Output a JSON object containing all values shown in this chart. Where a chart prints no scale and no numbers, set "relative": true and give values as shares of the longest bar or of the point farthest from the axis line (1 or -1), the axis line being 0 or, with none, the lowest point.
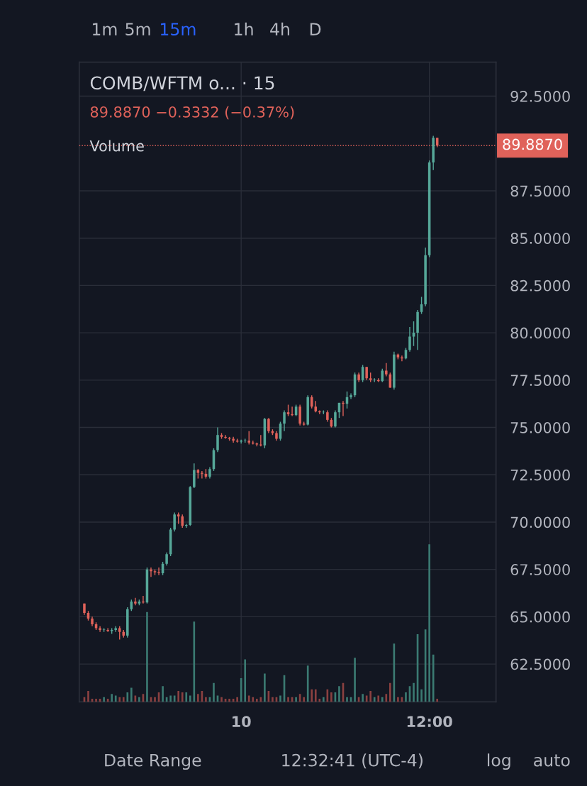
{
  "chart_data": [
    {
      "type": "candlestick",
      "title": "COMB/WFTM o... · 15",
      "subtitle": "89.8870 −0.3332 (−0.37%)",
      "categories": [
        null,
        null,
        null,
        null,
        null,
        null,
        null,
        null,
        null,
        null,
        null,
        null,
        null,
        null,
        null,
        null,
        null,
        null,
        null,
        null,
        null,
        null,
        null,
        null,
        null,
        null,
        null,
        null,
        null,
        null,
        null,
        null,
        null,
        null,
        null,
        null,
        null,
        null,
        null,
        null,
        "10",
        null,
        null,
        null,
        null,
        null,
        null,
        null,
        null,
        null,
        null,
        null,
        null,
        null,
        null,
        null,
        null,
        null,
        null,
        null,
        null,
        null,
        null,
        null,
        null,
        null,
        null,
        null,
        null,
        null,
        null,
        null,
        null,
        null,
        null,
        null,
        null,
        null,
        null,
        null,
        null,
        null,
        null,
        null,
        null,
        null,
        null,
        null,
        "12:00",
        null,
        null
      ],
      "ohlc": [
        [
          65.7,
          65.7,
          65.1,
          65.2
        ],
        [
          65.2,
          65.3,
          64.8,
          64.9
        ],
        [
          64.9,
          65.0,
          64.5,
          64.6
        ],
        [
          64.6,
          64.7,
          64.3,
          64.4
        ],
        [
          64.4,
          64.5,
          64.2,
          64.3
        ],
        [
          64.3,
          64.4,
          64.2,
          64.3
        ],
        [
          64.3,
          64.4,
          64.2,
          64.25
        ],
        [
          64.25,
          64.4,
          64.1,
          64.3
        ],
        [
          64.3,
          64.5,
          64.2,
          64.4
        ],
        [
          64.4,
          64.5,
          63.8,
          64.2
        ],
        [
          64.2,
          64.3,
          63.9,
          64.0
        ],
        [
          64.0,
          65.5,
          63.9,
          65.4
        ],
        [
          65.4,
          65.9,
          65.3,
          65.8
        ],
        [
          65.8,
          66.0,
          65.6,
          65.7
        ],
        [
          65.7,
          65.9,
          65.6,
          65.8
        ],
        [
          65.8,
          66.1,
          65.7,
          65.75
        ],
        [
          65.75,
          67.6,
          65.7,
          67.5
        ],
        [
          67.5,
          67.6,
          67.1,
          67.4
        ],
        [
          67.4,
          67.5,
          67.2,
          67.35
        ],
        [
          67.35,
          67.6,
          67.2,
          67.3
        ],
        [
          67.3,
          67.9,
          67.2,
          67.8
        ],
        [
          67.8,
          68.4,
          67.7,
          68.3
        ],
        [
          68.3,
          69.7,
          68.2,
          69.6
        ],
        [
          69.6,
          70.5,
          69.5,
          70.4
        ],
        [
          70.4,
          70.5,
          69.9,
          70.3
        ],
        [
          70.3,
          70.4,
          69.7,
          69.8
        ],
        [
          69.8,
          69.9,
          69.7,
          69.85
        ],
        [
          69.85,
          71.9,
          69.8,
          71.85
        ],
        [
          71.85,
          73.1,
          71.8,
          72.75
        ],
        [
          72.75,
          72.8,
          72.3,
          72.6
        ],
        [
          72.6,
          72.7,
          72.3,
          72.55
        ],
        [
          72.55,
          72.8,
          72.3,
          72.4
        ],
        [
          72.4,
          72.9,
          72.3,
          72.8
        ],
        [
          72.8,
          73.9,
          72.7,
          73.8
        ],
        [
          73.8,
          75.0,
          73.7,
          74.6
        ],
        [
          74.6,
          74.7,
          74.4,
          74.5
        ],
        [
          74.5,
          74.6,
          74.4,
          74.45
        ],
        [
          74.45,
          74.5,
          74.3,
          74.4
        ],
        [
          74.4,
          74.5,
          74.2,
          74.3
        ],
        [
          74.3,
          74.4,
          74.2,
          74.25
        ],
        [
          74.25,
          74.35,
          74.15,
          74.3
        ],
        [
          74.3,
          74.4,
          74.2,
          74.3
        ],
        [
          74.3,
          74.8,
          74.1,
          74.2
        ],
        [
          74.2,
          74.3,
          74.1,
          74.15
        ],
        [
          74.15,
          74.2,
          74.0,
          74.1
        ],
        [
          74.1,
          74.6,
          74.0,
          74.05
        ],
        [
          74.05,
          75.5,
          73.9,
          75.45
        ],
        [
          75.45,
          75.5,
          74.7,
          74.8
        ],
        [
          74.8,
          74.9,
          74.6,
          74.7
        ],
        [
          74.7,
          74.8,
          74.3,
          74.4
        ],
        [
          74.4,
          75.3,
          74.3,
          75.2
        ],
        [
          75.2,
          75.9,
          74.8,
          75.8
        ],
        [
          75.8,
          76.2,
          75.6,
          75.7
        ],
        [
          75.7,
          76.1,
          75.6,
          75.65
        ],
        [
          75.65,
          76.2,
          75.6,
          76.1
        ],
        [
          76.1,
          76.2,
          75.1,
          75.2
        ],
        [
          75.2,
          75.3,
          75.1,
          75.15
        ],
        [
          75.15,
          76.7,
          75.1,
          76.6
        ],
        [
          76.6,
          76.7,
          76.0,
          76.1
        ],
        [
          76.1,
          76.4,
          75.8,
          75.85
        ],
        [
          75.85,
          75.9,
          75.7,
          75.8
        ],
        [
          75.8,
          75.9,
          75.7,
          75.8
        ],
        [
          75.8,
          75.9,
          75.3,
          75.4
        ],
        [
          75.4,
          75.5,
          75.0,
          75.05
        ],
        [
          75.05,
          75.9,
          75.0,
          75.8
        ],
        [
          75.8,
          76.3,
          75.5,
          76.3
        ],
        [
          76.3,
          76.4,
          75.6,
          76.25
        ],
        [
          76.25,
          76.9,
          76.0,
          76.6
        ],
        [
          76.6,
          76.8,
          76.5,
          76.7
        ],
        [
          76.7,
          77.9,
          76.6,
          77.8
        ],
        [
          77.8,
          77.9,
          77.4,
          77.5
        ],
        [
          77.5,
          78.3,
          77.4,
          78.2
        ],
        [
          78.2,
          78.2,
          77.5,
          77.6
        ],
        [
          77.6,
          77.9,
          77.4,
          77.5
        ],
        [
          77.5,
          77.6,
          77.4,
          77.5
        ],
        [
          77.5,
          77.6,
          77.4,
          77.45
        ],
        [
          77.45,
          78.1,
          77.4,
          78.0
        ],
        [
          78.0,
          78.4,
          77.7,
          77.8
        ],
        [
          77.8,
          77.9,
          77.1,
          77.1
        ],
        [
          77.1,
          79.0,
          77.0,
          78.85
        ],
        [
          78.85,
          78.9,
          78.6,
          78.7
        ],
        [
          78.7,
          78.8,
          78.5,
          78.65
        ],
        [
          78.65,
          79.2,
          78.6,
          79.1
        ],
        [
          79.1,
          80.3,
          79.0,
          79.8
        ],
        [
          79.8,
          80.6,
          79.3,
          80.0
        ],
        [
          80.0,
          81.2,
          79.1,
          81.1
        ],
        [
          81.1,
          81.9,
          81.0,
          81.5
        ],
        [
          81.5,
          84.5,
          81.4,
          84.1
        ],
        [
          84.1,
          89.1,
          84.0,
          89.0
        ],
        [
          89.0,
          90.4,
          88.6,
          90.3
        ],
        [
          90.3,
          90.3,
          89.8,
          89.887
        ]
      ],
      "colors": [
        "#e0625a",
        "#e0625a",
        "#e0625a",
        "#e0625a",
        "#e0625a",
        "#56a899",
        "#e0625a",
        "#56a899",
        "#56a899",
        "#e0625a",
        "#e0625a",
        "#56a899",
        "#56a899",
        "#e0625a",
        "#56a899",
        "#e0625a",
        "#56a899",
        "#e0625a",
        "#e0625a",
        "#e0625a",
        "#56a899",
        "#56a899",
        "#56a899",
        "#56a899",
        "#e0625a",
        "#e0625a",
        "#56a899",
        "#56a899",
        "#56a899",
        "#e0625a",
        "#e0625a",
        "#e0625a",
        "#56a899",
        "#56a899",
        "#56a899",
        "#e0625a",
        "#e0625a",
        "#e0625a",
        "#e0625a",
        "#e0625a",
        "#56a899",
        "#56a899",
        "#e0625a",
        "#e0625a",
        "#e0625a",
        "#e0625a",
        "#56a899",
        "#e0625a",
        "#e0625a",
        "#e0625a",
        "#56a899",
        "#56a899",
        "#e0625a",
        "#e0625a",
        "#56a899",
        "#e0625a",
        "#e0625a",
        "#56a899",
        "#e0625a",
        "#e0625a",
        "#e0625a",
        "#56a899",
        "#e0625a",
        "#e0625a",
        "#56a899",
        "#56a899",
        "#e0625a",
        "#56a899",
        "#56a899",
        "#56a899",
        "#e0625a",
        "#56a899",
        "#e0625a",
        "#e0625a",
        "#56a899",
        "#e0625a",
        "#56a899",
        "#e0625a",
        "#e0625a",
        "#56a899",
        "#e0625a",
        "#e0625a",
        "#56a899",
        "#56a899",
        "#56a899",
        "#56a899",
        "#56a899",
        "#56a899",
        "#56a899",
        "#56a899",
        "#e0625a"
      ],
      "ylim": [
        60.5,
        94.3
      ],
      "yticks": [
        {
          "value": 62.5,
          "label": "62.5000"
        },
        {
          "value": 65,
          "label": "65.0000"
        },
        {
          "value": 67.5,
          "label": "67.5000"
        },
        {
          "value": 70,
          "label": "70.0000"
        },
        {
          "value": 72.5,
          "label": "72.5000"
        },
        {
          "value": 75,
          "label": "75.0000"
        },
        {
          "value": 77.5,
          "label": "77.5000"
        },
        {
          "value": 80,
          "label": "80.0000"
        },
        {
          "value": 82.5,
          "label": "82.5000"
        },
        {
          "value": 85,
          "label": "85.0000"
        },
        {
          "value": 87.5,
          "label": "87.5000"
        },
        {
          "value": 92.5,
          "label": "92.5000"
        }
      ],
      "ref_lines": [
        {
          "axis": "y",
          "value": 89.887,
          "label": "89.8870",
          "color": "#e0625a",
          "line_style": "dotted"
        }
      ],
      "grid": true,
      "annotations": [
        "1m",
        "5m",
        "15m",
        "1h",
        "4h",
        "D",
        "Date Range",
        "12:32:41 (UTC-4)",
        "log",
        "auto"
      ]
    },
    {
      "type": "bar",
      "title": "Volume",
      "relative": true,
      "categories": [
        null,
        null,
        null,
        null,
        null,
        null,
        null,
        null,
        null,
        null,
        null,
        null,
        null,
        null,
        null,
        null,
        null,
        null,
        null,
        null,
        null,
        null,
        null,
        null,
        null,
        null,
        null,
        null,
        null,
        null,
        null,
        null,
        null,
        null,
        null,
        null,
        null,
        null,
        null,
        null,
        null,
        null,
        null,
        null,
        null,
        null,
        null,
        null,
        null,
        null,
        null,
        null,
        null,
        null,
        null,
        null,
        null,
        null,
        null,
        null,
        null,
        null,
        null,
        null,
        null,
        null,
        null,
        null,
        null,
        null,
        null,
        null,
        null,
        null,
        null,
        null,
        null,
        null,
        null,
        null,
        null,
        null,
        null,
        null,
        null,
        null,
        null,
        null,
        null,
        null,
        null
      ],
      "values": [
        0.03,
        0.07,
        0.02,
        0.02,
        0.02,
        0.03,
        0.02,
        0.05,
        0.04,
        0.03,
        0.03,
        0.06,
        0.09,
        0.04,
        0.03,
        0.05,
        0.57,
        0.03,
        0.03,
        0.06,
        0.1,
        0.03,
        0.04,
        0.04,
        0.07,
        0.06,
        0.06,
        0.04,
        0.51,
        0.05,
        0.07,
        0.03,
        0.03,
        0.12,
        0.04,
        0.03,
        0.02,
        0.02,
        0.02,
        0.03,
        0.15,
        0.27,
        0.04,
        0.03,
        0.02,
        0.03,
        0.18,
        0.07,
        0.03,
        0.03,
        0.04,
        0.17,
        0.03,
        0.03,
        0.03,
        0.05,
        0.03,
        0.23,
        0.08,
        0.08,
        0.02,
        0.03,
        0.08,
        0.06,
        0.06,
        0.1,
        0.12,
        0.03,
        0.03,
        0.28,
        0.03,
        0.05,
        0.04,
        0.07,
        0.03,
        0.04,
        0.03,
        0.05,
        0.12,
        0.37,
        0.03,
        0.03,
        0.06,
        0.1,
        0.12,
        0.43,
        0.08,
        0.46,
        1.0,
        0.3,
        0.02
      ],
      "colors": [
        "#8a4040",
        "#8a4040",
        "#8a4040",
        "#8a4040",
        "#8a4040",
        "#3b7a72",
        "#8a4040",
        "#3b7a72",
        "#3b7a72",
        "#8a4040",
        "#8a4040",
        "#3b7a72",
        "#3b7a72",
        "#8a4040",
        "#3b7a72",
        "#8a4040",
        "#3b7a72",
        "#8a4040",
        "#8a4040",
        "#8a4040",
        "#3b7a72",
        "#3b7a72",
        "#3b7a72",
        "#3b7a72",
        "#8a4040",
        "#8a4040",
        "#3b7a72",
        "#3b7a72",
        "#3b7a72",
        "#8a4040",
        "#8a4040",
        "#8a4040",
        "#3b7a72",
        "#3b7a72",
        "#3b7a72",
        "#8a4040",
        "#8a4040",
        "#8a4040",
        "#8a4040",
        "#8a4040",
        "#3b7a72",
        "#3b7a72",
        "#8a4040",
        "#8a4040",
        "#8a4040",
        "#8a4040",
        "#3b7a72",
        "#8a4040",
        "#8a4040",
        "#8a4040",
        "#3b7a72",
        "#3b7a72",
        "#8a4040",
        "#8a4040",
        "#3b7a72",
        "#8a4040",
        "#8a4040",
        "#3b7a72",
        "#8a4040",
        "#8a4040",
        "#8a4040",
        "#3b7a72",
        "#8a4040",
        "#8a4040",
        "#3b7a72",
        "#3b7a72",
        "#8a4040",
        "#3b7a72",
        "#3b7a72",
        "#3b7a72",
        "#8a4040",
        "#3b7a72",
        "#8a4040",
        "#8a4040",
        "#3b7a72",
        "#8a4040",
        "#3b7a72",
        "#8a4040",
        "#8a4040",
        "#3b7a72",
        "#8a4040",
        "#8a4040",
        "#3b7a72",
        "#3b7a72",
        "#3b7a72",
        "#3b7a72",
        "#3b7a72",
        "#3b7a72",
        "#3b7a72",
        "#3b7a72",
        "#8a4040"
      ]
    }
  ]
}
